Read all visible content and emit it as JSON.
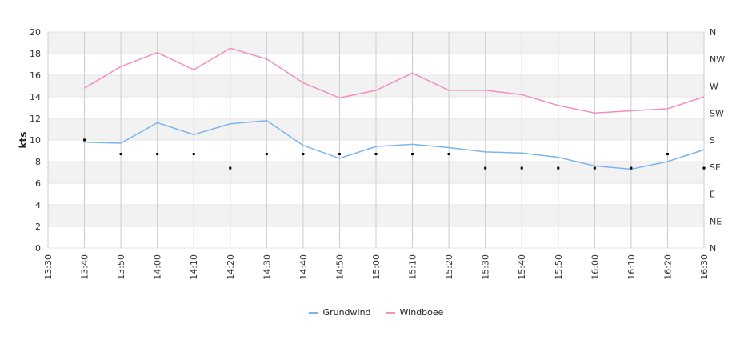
{
  "chart_data": {
    "type": "line",
    "ylabel": "kts",
    "ylim": [
      0,
      20
    ],
    "yticks": [
      0,
      2,
      4,
      6,
      8,
      10,
      12,
      14,
      16,
      18,
      20
    ],
    "x_tick_labels": [
      "13:30",
      "13:40",
      "13:50",
      "14:00",
      "14:10",
      "14:20",
      "14:30",
      "14:40",
      "14:50",
      "15:00",
      "15:10",
      "15:20",
      "15:30",
      "15:40",
      "15:50",
      "16:00",
      "16:10",
      "16:20",
      "16:30"
    ],
    "right_axis_labels": [
      "N",
      "NE",
      "E",
      "SE",
      "S",
      "SW",
      "W",
      "NW",
      "N"
    ],
    "x": [
      "13:40",
      "13:50",
      "14:00",
      "14:10",
      "14:20",
      "14:30",
      "14:40",
      "14:50",
      "15:00",
      "15:10",
      "15:20",
      "15:30",
      "15:40",
      "15:50",
      "16:00",
      "16:10",
      "16:20",
      "16:30"
    ],
    "series": [
      {
        "name": "Grundwind",
        "color": "#7cb5ec",
        "values": [
          9.8,
          9.7,
          11.6,
          10.5,
          11.5,
          11.8,
          9.5,
          8.3,
          9.4,
          9.6,
          9.3,
          8.9,
          8.8,
          8.4,
          7.6,
          7.3,
          8.0,
          9.1
        ]
      },
      {
        "name": "Windboee",
        "color": "#f28fbf",
        "values": [
          14.8,
          16.8,
          18.1,
          16.5,
          18.5,
          17.5,
          15.3,
          13.9,
          14.6,
          16.2,
          14.6,
          14.6,
          14.2,
          13.2,
          12.5,
          12.7,
          12.9,
          14.0
        ]
      }
    ],
    "direction_marks": [
      {
        "x": "13:40",
        "value": 10.0
      },
      {
        "x": "13:50",
        "value": 8.7
      },
      {
        "x": "14:00",
        "value": 8.7
      },
      {
        "x": "14:10",
        "value": 8.7
      },
      {
        "x": "14:20",
        "value": 7.4
      },
      {
        "x": "14:30",
        "value": 8.7
      },
      {
        "x": "14:40",
        "value": 8.7
      },
      {
        "x": "14:50",
        "value": 8.7
      },
      {
        "x": "15:00",
        "value": 8.7
      },
      {
        "x": "15:10",
        "value": 8.7
      },
      {
        "x": "15:20",
        "value": 8.7
      },
      {
        "x": "15:30",
        "value": 7.4
      },
      {
        "x": "15:40",
        "value": 7.4
      },
      {
        "x": "15:50",
        "value": 7.4
      },
      {
        "x": "16:00",
        "value": 7.4
      },
      {
        "x": "16:10",
        "value": 7.4
      },
      {
        "x": "16:20",
        "value": 8.7
      },
      {
        "x": "16:30",
        "value": 7.4
      }
    ],
    "grid": true,
    "legend_position": "bottom-center"
  }
}
